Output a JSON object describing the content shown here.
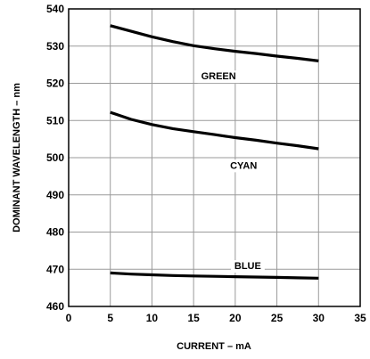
{
  "chart_data": {
    "type": "line",
    "xlabel": "CURRENT – mA",
    "ylabel": "DOMINANT WAVELENGTH – nm",
    "xlim": [
      0,
      35
    ],
    "ylim": [
      460,
      540
    ],
    "xticks": [
      0,
      5,
      10,
      15,
      20,
      25,
      30,
      35
    ],
    "yticks": [
      460,
      470,
      480,
      490,
      500,
      510,
      520,
      530,
      540
    ],
    "xtick_labels": [
      "0",
      "5",
      "10",
      "15",
      "20",
      "25",
      "30",
      "35"
    ],
    "ytick_labels": [
      "460",
      "470",
      "480",
      "490",
      "500",
      "510",
      "520",
      "530",
      "540"
    ],
    "grid": true,
    "series": [
      {
        "name": "GREEN",
        "x": [
          5,
          7.5,
          10,
          12.5,
          15,
          17.5,
          20,
          22.5,
          25,
          27.5,
          30
        ],
        "y": [
          535.5,
          534,
          532.5,
          531.2,
          530.1,
          529.3,
          528.6,
          528,
          527.3,
          526.7,
          526
        ],
        "label_at": [
          18,
          522
        ]
      },
      {
        "name": "CYAN",
        "x": [
          5,
          7.5,
          10,
          12.5,
          15,
          17.5,
          20,
          22.5,
          25,
          27.5,
          30
        ],
        "y": [
          512.2,
          510.3,
          508.9,
          507.8,
          507,
          506.2,
          505.4,
          504.7,
          503.9,
          503.2,
          502.4
        ],
        "label_at": [
          21,
          498
        ]
      },
      {
        "name": "BLUE",
        "x": [
          5,
          7.5,
          10,
          12.5,
          15,
          17.5,
          20,
          22.5,
          25,
          27.5,
          30
        ],
        "y": [
          469,
          468.7,
          468.5,
          468.3,
          468.2,
          468.1,
          468,
          467.9,
          467.8,
          467.7,
          467.6
        ],
        "label_at": [
          21.5,
          471
        ]
      }
    ]
  }
}
